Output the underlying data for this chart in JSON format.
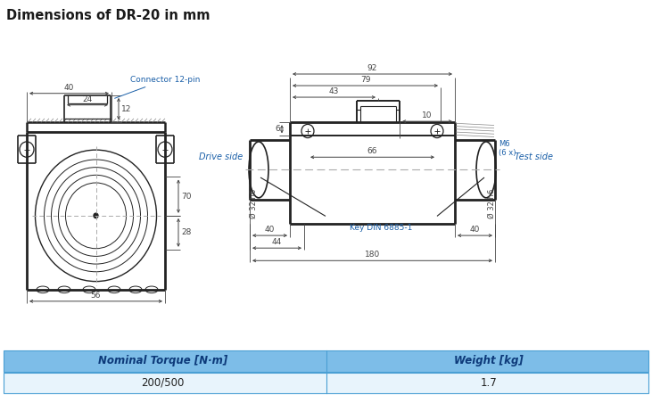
{
  "title": "Dimensions of DR-20 in mm",
  "title_bg": "#daeaf7",
  "title_color": "#1a1a1a",
  "table_header_bg": "#7dbde8",
  "table_row_bg": "#e8f4fc",
  "table_border": "#4a9fd4",
  "table_col1_header": "Nominal Torque [N·m]",
  "table_col2_header": "Weight [kg]",
  "table_col1_value": "200/500",
  "table_col2_value": "1.7",
  "drawing_bg": "#ffffff",
  "line_color": "#222222",
  "dim_color": "#444444",
  "blue_text": "#1a5fa8",
  "hatch_color": "#888888"
}
